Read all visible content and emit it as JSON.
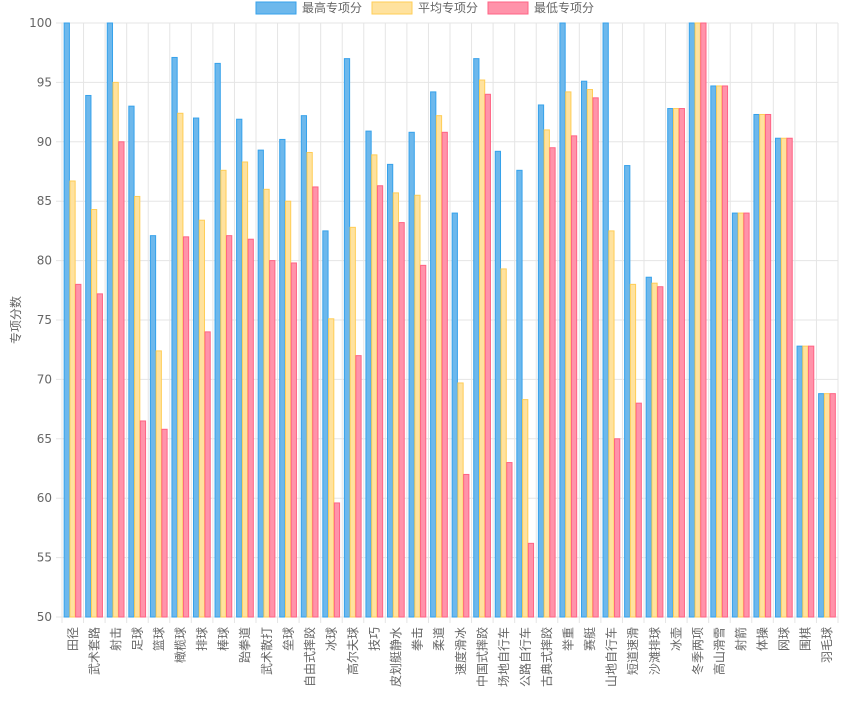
{
  "chart_data": {
    "type": "bar",
    "title": "",
    "xlabel": "",
    "ylabel": "专项分数",
    "ylim": [
      50,
      100
    ],
    "yticks": [
      50,
      55,
      60,
      65,
      70,
      75,
      80,
      85,
      90,
      95,
      100
    ],
    "grid": true,
    "legend_position": "top",
    "categories": [
      "田径",
      "武术套路",
      "射击",
      "足球",
      "篮球",
      "橄榄球",
      "排球",
      "棒球",
      "跆拳道",
      "武术散打",
      "垒球",
      "自由式摔跤",
      "冰球",
      "高尔夫球",
      "技巧",
      "皮划艇静水",
      "拳击",
      "柔道",
      "速度滑冰",
      "中国式摔跤",
      "场地自行车",
      "公路自行车",
      "古典式摔跤",
      "举重",
      "赛艇",
      "山地自行车",
      "短道速滑",
      "沙滩排球",
      "冰壶",
      "冬季两项",
      "高山滑雪",
      "射箭",
      "体操",
      "网球",
      "围棋",
      "羽毛球"
    ],
    "series": [
      {
        "name": "最高专项分",
        "color": "#6db8ec",
        "border": "#36a2eb",
        "values": [
          100,
          93.9,
          100,
          93,
          82.1,
          97.1,
          92,
          96.6,
          91.9,
          89.3,
          90.2,
          92.2,
          82.5,
          97,
          90.9,
          88.1,
          90.8,
          94.2,
          84,
          97,
          89.2,
          87.6,
          93.1,
          100,
          95.1,
          100,
          88,
          78.6,
          92.8,
          100,
          94.7,
          84,
          92.3,
          90.3,
          72.8,
          68.8
        ]
      },
      {
        "name": "平均专项分",
        "color": "#ffe29e",
        "border": "#ffcd56",
        "values": [
          86.7,
          84.3,
          95,
          85.4,
          72.4,
          92.4,
          83.4,
          87.6,
          88.3,
          86,
          85,
          89.1,
          75.1,
          82.8,
          88.9,
          85.7,
          85.5,
          92.2,
          69.7,
          95.2,
          79.3,
          68.3,
          91,
          94.2,
          94.4,
          82.5,
          78,
          78.1,
          92.8,
          100,
          94.7,
          84,
          92.3,
          90.3,
          72.8,
          68.8
        ]
      },
      {
        "name": "最低专项分",
        "color": "#ff93aa",
        "border": "#ff6384",
        "values": [
          78,
          77.2,
          90,
          66.5,
          65.8,
          82,
          74,
          82.1,
          81.8,
          80,
          79.8,
          86.2,
          59.6,
          72,
          86.3,
          83.2,
          79.6,
          90.8,
          62,
          94,
          63,
          56.2,
          89.5,
          90.5,
          93.7,
          65,
          68,
          77.8,
          92.8,
          100,
          94.7,
          84,
          92.3,
          90.3,
          72.8,
          68.8
        ]
      }
    ]
  }
}
